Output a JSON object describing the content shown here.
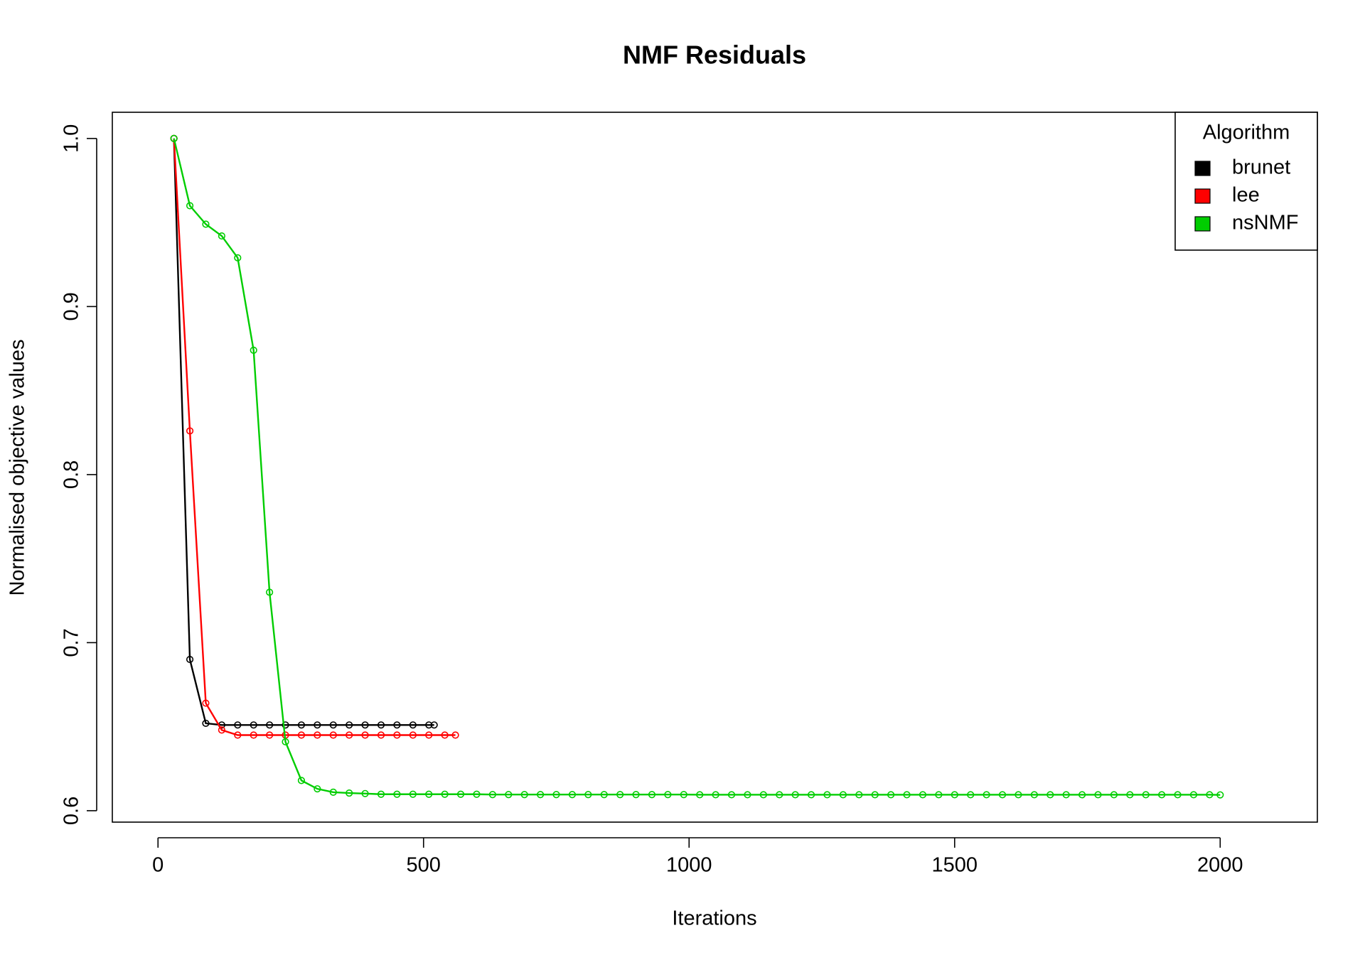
{
  "chart_data": {
    "type": "line",
    "title": "NMF Residuals",
    "x_label": "Iterations",
    "y_label": "Normalised objective values",
    "legend_title": "Algorithm",
    "legend_position": "topright",
    "grid": false,
    "markers": true,
    "xlim": [
      -86,
      2183
    ],
    "ylim": [
      0.5932,
      1.0156
    ],
    "xticks": [
      0,
      500,
      1000,
      1500,
      2000
    ],
    "yticks": [
      0.6,
      0.7,
      0.8,
      0.9,
      {
        "value": 1,
        "label": "1.0"
      }
    ],
    "series": [
      {
        "name": "brunet",
        "color": "#000000",
        "x": [
          30,
          60,
          90,
          120,
          150,
          180,
          210,
          240,
          270,
          300,
          330,
          360,
          390,
          420,
          450,
          480,
          510,
          520
        ],
        "values": [
          1.0,
          0.69,
          0.652,
          0.651,
          0.651,
          0.651,
          0.651,
          0.651,
          0.651,
          0.651,
          0.651,
          0.651,
          0.651,
          0.651,
          0.651,
          0.651,
          0.651,
          0.651
        ]
      },
      {
        "name": "lee",
        "color": "#ff0000",
        "x": [
          30,
          60,
          90,
          120,
          150,
          180,
          210,
          240,
          270,
          300,
          330,
          360,
          390,
          420,
          450,
          480,
          510,
          540,
          560
        ],
        "values": [
          1.0,
          0.826,
          0.664,
          0.648,
          0.645,
          0.645,
          0.645,
          0.645,
          0.645,
          0.645,
          0.645,
          0.645,
          0.645,
          0.645,
          0.645,
          0.645,
          0.645,
          0.645,
          0.645
        ]
      },
      {
        "name": "nsNMF",
        "color": "#00cd00",
        "x": [
          30,
          60,
          90,
          120,
          150,
          180,
          210,
          240,
          270,
          300,
          330,
          360,
          390,
          420,
          450,
          480,
          510,
          540,
          570,
          600,
          630,
          660,
          690,
          720,
          750,
          780,
          810,
          840,
          870,
          900,
          930,
          960,
          990,
          1020,
          1050,
          1080,
          1110,
          1140,
          1170,
          1200,
          1230,
          1260,
          1290,
          1320,
          1350,
          1380,
          1410,
          1440,
          1470,
          1500,
          1530,
          1560,
          1590,
          1620,
          1650,
          1680,
          1710,
          1740,
          1770,
          1800,
          1830,
          1860,
          1890,
          1920,
          1950,
          1980,
          2000
        ],
        "values": [
          1.0,
          0.96,
          0.949,
          0.942,
          0.929,
          0.874,
          0.73,
          0.641,
          0.618,
          0.613,
          0.611,
          0.6105,
          0.6102,
          0.6098,
          0.6098,
          0.6098,
          0.6098,
          0.6098,
          0.6098,
          0.6098,
          0.6096,
          0.6096,
          0.6096,
          0.6096,
          0.6096,
          0.6096,
          0.6096,
          0.6096,
          0.6096,
          0.6096,
          0.6096,
          0.6096,
          0.6096,
          0.6095,
          0.6095,
          0.6095,
          0.6095,
          0.6095,
          0.6095,
          0.6095,
          0.6095,
          0.6095,
          0.6095,
          0.6095,
          0.6095,
          0.6095,
          0.6095,
          0.6095,
          0.6095,
          0.6095,
          0.6095,
          0.6095,
          0.6095,
          0.6095,
          0.6095,
          0.6095,
          0.6095,
          0.6095,
          0.6095,
          0.6095,
          0.6095,
          0.6095,
          0.6095,
          0.6095,
          0.6095,
          0.6095,
          0.6094
        ]
      }
    ]
  }
}
